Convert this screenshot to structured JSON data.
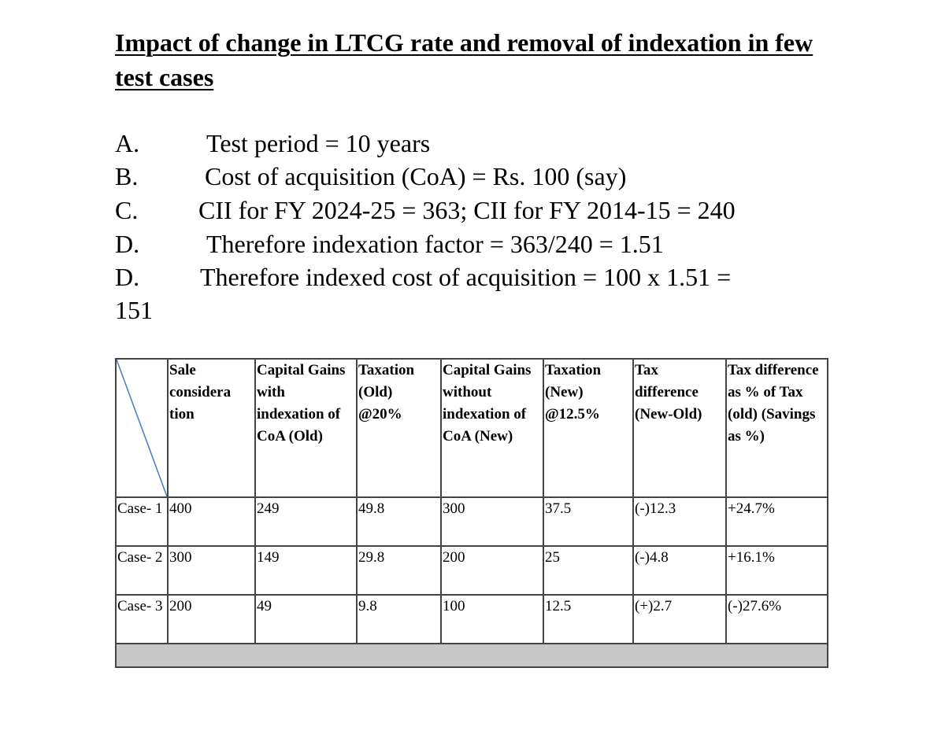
{
  "title": "Impact of change in LTCG rate and removal of indexation in few test cases",
  "points": [
    {
      "letter": "A.",
      "text": "Test period  = 10 years"
    },
    {
      "letter": "B.",
      "text": "Cost of acquisition (CoA) = Rs. 100 (say)"
    },
    {
      "letter": "C.",
      "text": "CII for FY 2024-25 = 363; CII for FY 2014-15 = 240"
    },
    {
      "letter": "D.",
      "text": "Therefore indexation factor = 363/240 = 1.51"
    },
    {
      "letter": "D.",
      "text": "Therefore indexed cost of acquisition = 100 x 1.51 ="
    }
  ],
  "wrap_value": "151",
  "table": {
    "headers": [
      "",
      "Sale considera tion",
      "Capital Gains with indexation of CoA (Old)",
      "Taxation (Old) @20%",
      "Capital Gains without indexation of CoA (New)",
      "Taxation (New) @12.5%",
      "Tax difference (New-Old)",
      "Tax difference as % of Tax (old) (Savings as %)"
    ],
    "rows": [
      [
        "Case- 1",
        "400",
        "249",
        "49.8",
        "300",
        "37.5",
        "(-)12.3",
        "+24.7%"
      ],
      [
        "Case- 2",
        "300",
        "149",
        "29.8",
        "200",
        "25",
        "(-)4.8",
        "+16.1%"
      ],
      [
        "Case- 3",
        "200",
        "49",
        "9.8",
        "100",
        "12.5",
        "(+)2.7",
        "(-)27.6%"
      ]
    ]
  },
  "colors": {
    "diagonal": "#4a7fc1",
    "footer_band": "#c8c8c8"
  }
}
